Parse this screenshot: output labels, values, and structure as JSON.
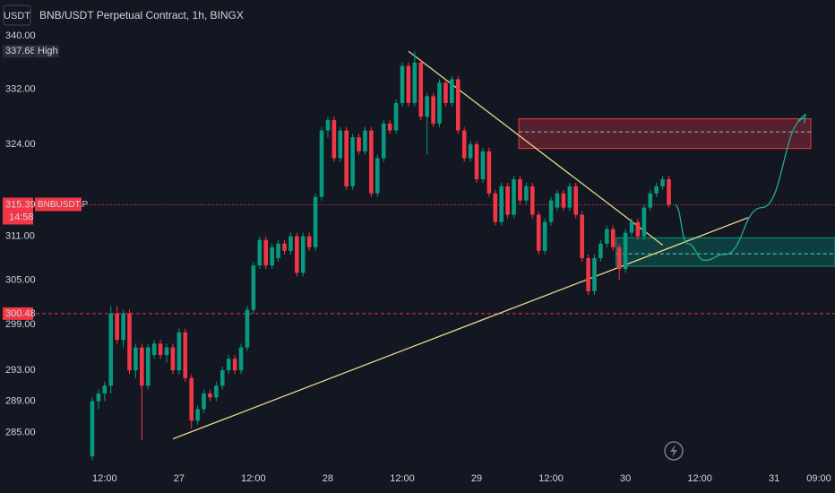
{
  "chart_data": {
    "type": "candlestick",
    "title": "BNB/USDT Perpetual Contract, 1h, BINGX",
    "currency": "USDT",
    "log_scale": true,
    "grid": false,
    "up_color": "#089981",
    "down_color": "#f23645",
    "ylim": [
      281,
      341.1
    ],
    "yticks": [
      {
        "value": 285,
        "label": "285.00"
      },
      {
        "value": 289,
        "label": "289.00"
      },
      {
        "value": 293,
        "label": "293.00"
      },
      {
        "value": 299,
        "label": "299.00"
      },
      {
        "value": 305,
        "label": "305.00"
      },
      {
        "value": 311,
        "label": "311.00"
      },
      {
        "value": 324,
        "label": "324.00"
      },
      {
        "value": 332,
        "label": "332.00"
      },
      {
        "value": 340,
        "label": "340.00"
      }
    ],
    "xlim": [
      0.9,
      129.8
    ],
    "xticks": [
      {
        "value": 12,
        "label": "12:00"
      },
      {
        "value": 24,
        "label": "27"
      },
      {
        "value": 36,
        "label": "12:00"
      },
      {
        "value": 48,
        "label": "28"
      },
      {
        "value": 60,
        "label": "12:00"
      },
      {
        "value": 72,
        "label": "29"
      },
      {
        "value": 84,
        "label": "12:00"
      },
      {
        "value": 96,
        "label": "30"
      },
      {
        "value": 108,
        "label": "12:00"
      },
      {
        "value": 120,
        "label": "31"
      },
      {
        "value": 129,
        "label": "09:00"
      }
    ],
    "x": [
      10,
      11,
      12,
      13,
      14,
      15,
      16,
      17,
      18,
      19,
      20,
      21,
      22,
      23,
      24,
      25,
      26,
      27,
      28,
      29,
      30,
      31,
      32,
      33,
      34,
      35,
      36,
      37,
      38,
      39,
      40,
      41,
      42,
      43,
      44,
      45,
      46,
      47,
      48,
      49,
      50,
      51,
      52,
      53,
      54,
      55,
      56,
      57,
      58,
      59,
      60,
      61,
      62,
      63,
      64,
      65,
      66,
      67,
      68,
      69,
      70,
      71,
      72,
      73,
      74,
      75,
      76,
      77,
      78,
      79,
      80,
      81,
      82,
      83,
      84,
      85,
      86,
      87,
      88,
      89,
      90,
      91,
      92,
      93,
      94,
      95,
      96,
      97,
      98,
      99,
      100,
      101,
      102,
      103
    ],
    "ohlc": [
      [
        282,
        289.5,
        281.5,
        289
      ],
      [
        289,
        290.5,
        288,
        290
      ],
      [
        290,
        291.5,
        289,
        291
      ],
      [
        291,
        301.5,
        290,
        300.5
      ],
      [
        300.5,
        301.5,
        296.5,
        297
      ],
      [
        297,
        301,
        296,
        300.5
      ],
      [
        300.5,
        301,
        292.5,
        293
      ],
      [
        293,
        296.5,
        292,
        296
      ],
      [
        296,
        296.5,
        284,
        291
      ],
      [
        291,
        296.5,
        290.5,
        296
      ],
      [
        295,
        297,
        294.5,
        296.5
      ],
      [
        296.5,
        297,
        294.5,
        295
      ],
      [
        295,
        296.5,
        294,
        296
      ],
      [
        296,
        296.5,
        292.5,
        293
      ],
      [
        293,
        298.5,
        292.5,
        298
      ],
      [
        298,
        298.5,
        291.5,
        292
      ],
      [
        292,
        292.5,
        285.5,
        286.5
      ],
      [
        286.5,
        288.5,
        286,
        288
      ],
      [
        288,
        290.5,
        287.5,
        290
      ],
      [
        290,
        290.5,
        289,
        289.5
      ],
      [
        289.5,
        291.5,
        289,
        291
      ],
      [
        291,
        293.5,
        290.5,
        293
      ],
      [
        293,
        295,
        292.5,
        294.5
      ],
      [
        294.5,
        295,
        292.5,
        293
      ],
      [
        293,
        296.5,
        292.5,
        296
      ],
      [
        296,
        301.5,
        295.5,
        301
      ],
      [
        301,
        307.5,
        300.5,
        307
      ],
      [
        307,
        311,
        306.5,
        310.5
      ],
      [
        310.5,
        311,
        306.5,
        307
      ],
      [
        307,
        310,
        306.5,
        309.5
      ],
      [
        308,
        310.5,
        307.5,
        310
      ],
      [
        310,
        310.5,
        308.5,
        309
      ],
      [
        309,
        311.5,
        308.5,
        311
      ],
      [
        311,
        311.5,
        305.5,
        306
      ],
      [
        306,
        311.5,
        305.5,
        311
      ],
      [
        311,
        311.5,
        309,
        309.5
      ],
      [
        309.5,
        317,
        309,
        316.5
      ],
      [
        316.5,
        326.5,
        316,
        326
      ],
      [
        326,
        328,
        325,
        327.5
      ],
      [
        327.5,
        328,
        321.5,
        322
      ],
      [
        322,
        326.5,
        321.5,
        326
      ],
      [
        326,
        326.5,
        317.5,
        318
      ],
      [
        318,
        325.5,
        317.5,
        325
      ],
      [
        325,
        325.5,
        322.5,
        323
      ],
      [
        323,
        326.5,
        322.5,
        326
      ],
      [
        326,
        326.5,
        316.5,
        317
      ],
      [
        317,
        322.5,
        316.5,
        322
      ],
      [
        322,
        327.5,
        321.5,
        327
      ],
      [
        327,
        327.5,
        325.5,
        326
      ],
      [
        326,
        330.5,
        325.5,
        330
      ],
      [
        330,
        336,
        329.5,
        335.5
      ],
      [
        335.5,
        336,
        329.5,
        330
      ],
      [
        330,
        337.68,
        329.5,
        336
      ],
      [
        336,
        336.5,
        327.5,
        328
      ],
      [
        328,
        331.5,
        322.5,
        331
      ],
      [
        331,
        331.5,
        326.5,
        327
      ],
      [
        327,
        333.5,
        326.5,
        333
      ],
      [
        333,
        333.5,
        329.5,
        330
      ],
      [
        330,
        334,
        329.5,
        333.5
      ],
      [
        333.5,
        334,
        325.5,
        326
      ],
      [
        326,
        326.5,
        321.5,
        322
      ],
      [
        322,
        324.5,
        321.5,
        324
      ],
      [
        324,
        324.5,
        318.5,
        319
      ],
      [
        319,
        323.5,
        318.5,
        323
      ],
      [
        323,
        323.5,
        316.5,
        317
      ],
      [
        317,
        317.5,
        312.5,
        313
      ],
      [
        313,
        318.5,
        312.5,
        318
      ],
      [
        318,
        318.5,
        313.5,
        314
      ],
      [
        314,
        319.5,
        313.5,
        319
      ],
      [
        319,
        319.5,
        315.5,
        316
      ],
      [
        316,
        318.5,
        315.5,
        318
      ],
      [
        318,
        318.5,
        313.5,
        314
      ],
      [
        314,
        314.5,
        308.5,
        309
      ],
      [
        309,
        313.5,
        308.5,
        313
      ],
      [
        313,
        316.5,
        312.5,
        316
      ],
      [
        315,
        317.5,
        314.5,
        317
      ],
      [
        317,
        317.5,
        314.5,
        315
      ],
      [
        315,
        318.5,
        314.5,
        318
      ],
      [
        318,
        318.5,
        313.5,
        314
      ],
      [
        314,
        314.5,
        307.5,
        308
      ],
      [
        308,
        308.5,
        303,
        303.5
      ],
      [
        303.5,
        308.5,
        303,
        308
      ],
      [
        308,
        310.5,
        307.5,
        310
      ],
      [
        310,
        312.5,
        309.5,
        312
      ],
      [
        312,
        312.5,
        309,
        309.5
      ],
      [
        309.5,
        310,
        305,
        306.5
      ],
      [
        306.5,
        312,
        306,
        311.5
      ],
      [
        311.5,
        313.5,
        311,
        313
      ],
      [
        313,
        313.5,
        310.5,
        311
      ],
      [
        311,
        315.5,
        310.5,
        315
      ],
      [
        315,
        317.5,
        314.5,
        317
      ],
      [
        317,
        318.5,
        316.5,
        318
      ],
      [
        318,
        319.5,
        317.5,
        319
      ],
      [
        319,
        319.5,
        315,
        315.39
      ]
    ],
    "high_marker": {
      "value": 337.68,
      "label": "High"
    },
    "last_price": {
      "value": 315.39,
      "symbol": "BNBUSDT.P",
      "countdown": "14:58",
      "color": "#f23645"
    },
    "level": {
      "value": 300.48,
      "color": "#f23645"
    },
    "zones": [
      {
        "from": 78.8,
        "to": 125.9,
        "top": 327.7,
        "bottom": 323.4,
        "mid": 325.8,
        "color": "#f23645"
      },
      {
        "from": 94.5,
        "to": 129.8,
        "top": 310.8,
        "bottom": 306.9,
        "mid": 308.6,
        "color": "#089981"
      }
    ],
    "trendlines": [
      {
        "x": [
          61,
          102
        ],
        "y": [
          337.7,
          309.8
        ],
        "color": "#e8d48a"
      },
      {
        "x": [
          23,
          115.8
        ],
        "y": [
          284.2,
          313.6
        ],
        "color": "#e8d48a"
      }
    ],
    "projection": {
      "x": [
        104,
        106,
        108.8,
        112,
        118,
        125
      ],
      "y": [
        315.4,
        310,
        307.7,
        308.5,
        315,
        327.8
      ],
      "color": "#22ab94"
    }
  }
}
